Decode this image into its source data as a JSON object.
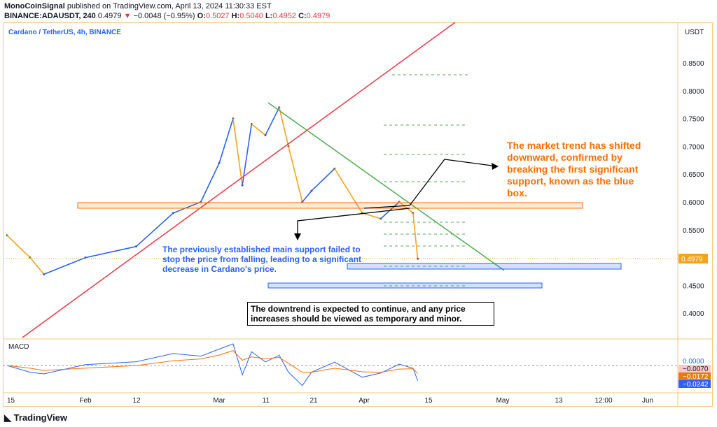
{
  "header": {
    "author": "MonoCoinSignal",
    "published": "published on TradingView.com, April 13, 2024 11:30:33 EST",
    "symbol": "BINANCE:ADAUSDT, 240",
    "last": "0.4979",
    "change": "−0.0048 (−0.95%)",
    "open_label": "O:",
    "open": "0.5027",
    "high_label": "H:",
    "high": "0.5040",
    "low_label": "L:",
    "low": "0.4952",
    "close_label": "C:",
    "close": "0.4979"
  },
  "chart_title": "Cardano / TetherUS, 4h, BINANCE",
  "currency": "USDT",
  "indicator": "MACD",
  "annotations": {
    "orange": "The market trend has shifted downward, confirmed by breaking the first significant support, known as the blue box.",
    "blue": "The previously established main support failed to stop the price from falling, leading to a significant decrease in Cardano's price.",
    "boxed": "The downtrend is expected to continue, and any price increases should be viewed as temporary and minor."
  },
  "colors": {
    "up": "#2962ff",
    "down": "#f7a21b",
    "trendline_red": "#f23645",
    "trendline_green": "#4caf50",
    "zone_orange": "#ff6d00",
    "zone_blue": "#2962ff"
  },
  "macd_labels": [
    "0.0000",
    "−0.0070",
    "−0.0172",
    "−0.0242"
  ],
  "logo": "TradingView",
  "chart_data": {
    "type": "line",
    "ylim": [
      0.36,
      0.88
    ],
    "y_ticks": [
      "0.8500",
      "0.8000",
      "0.7500",
      "0.7000",
      "0.6500",
      "0.6000",
      "0.5500",
      "0.4500",
      "0.4000"
    ],
    "last_price_label": "0.4979",
    "x_ticks": [
      "15",
      "Feb",
      "12",
      "Mar",
      "11",
      "21",
      "Apr",
      "15",
      "May",
      "13",
      "12:00",
      "Jun"
    ],
    "x": [
      "2024-01-15",
      "2024-01-20",
      "2024-01-23",
      "2024-02-01",
      "2024-02-12",
      "2024-02-20",
      "2024-02-26",
      "2024-03-01",
      "2024-03-04",
      "2024-03-06",
      "2024-03-08",
      "2024-03-11",
      "2024-03-14",
      "2024-03-16",
      "2024-03-19",
      "2024-03-21",
      "2024-03-26",
      "2024-04-01",
      "2024-04-05",
      "2024-04-09",
      "2024-04-12",
      "2024-04-13"
    ],
    "y": [
      0.54,
      0.5,
      0.47,
      0.5,
      0.52,
      0.58,
      0.6,
      0.67,
      0.75,
      0.63,
      0.74,
      0.72,
      0.77,
      0.7,
      0.6,
      0.62,
      0.66,
      0.58,
      0.57,
      0.6,
      0.58,
      0.4979
    ],
    "support_zones": [
      [
        0.592,
        0.602
      ],
      [
        0.48,
        0.488
      ],
      [
        0.448,
        0.455
      ]
    ]
  }
}
